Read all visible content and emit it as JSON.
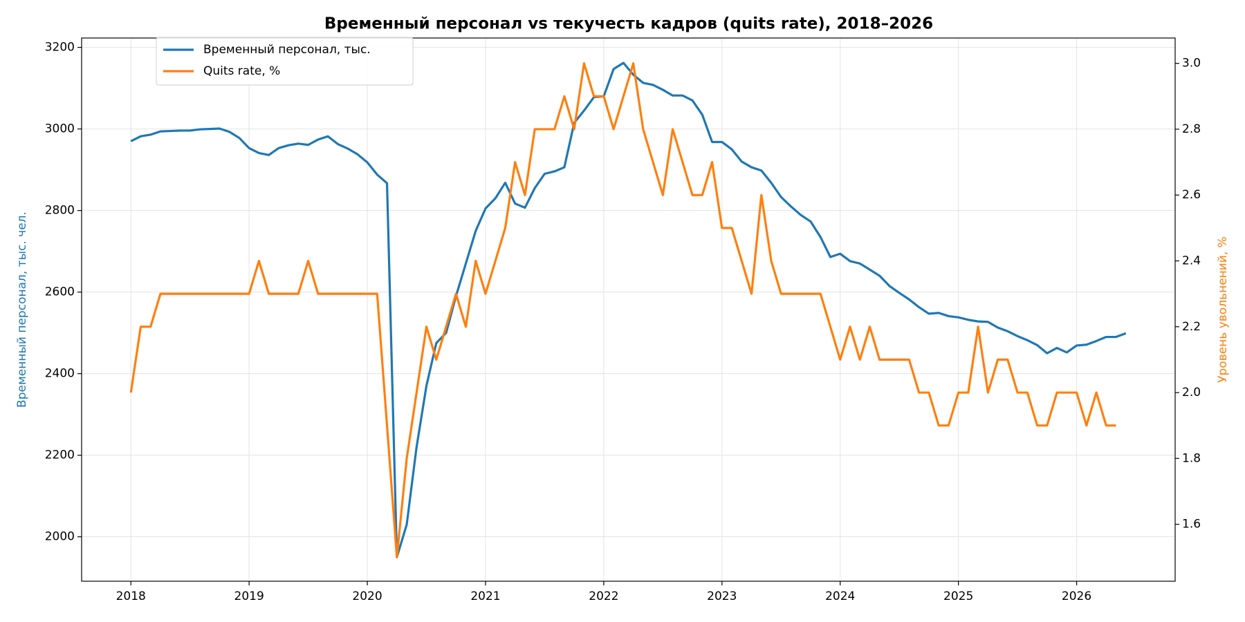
{
  "chart_data": {
    "type": "line",
    "title": "Временный персонал vs текучесть кадров (quits rate), 2018–2026",
    "ylabel": "Временный персонал, тыс. чел.",
    "y2label": "Уровень увольнений, %",
    "x": [
      "2018-01",
      "2018-02",
      "2018-03",
      "2018-04",
      "2018-05",
      "2018-06",
      "2018-07",
      "2018-08",
      "2018-09",
      "2018-10",
      "2018-11",
      "2018-12",
      "2019-01",
      "2019-02",
      "2019-03",
      "2019-04",
      "2019-05",
      "2019-06",
      "2019-07",
      "2019-08",
      "2019-09",
      "2019-10",
      "2019-11",
      "2019-12",
      "2020-01",
      "2020-02",
      "2020-03",
      "2020-04",
      "2020-05",
      "2020-06",
      "2020-07",
      "2020-08",
      "2020-09",
      "2020-10",
      "2020-11",
      "2020-12",
      "2021-01",
      "2021-02",
      "2021-03",
      "2021-04",
      "2021-05",
      "2021-06",
      "2021-07",
      "2021-08",
      "2021-09",
      "2021-10",
      "2021-11",
      "2021-12",
      "2022-01",
      "2022-02",
      "2022-03",
      "2022-04",
      "2022-05",
      "2022-06",
      "2022-07",
      "2022-08",
      "2022-09",
      "2022-10",
      "2022-11",
      "2022-12",
      "2023-01",
      "2023-02",
      "2023-03",
      "2023-04",
      "2023-05",
      "2023-06",
      "2023-07",
      "2023-08",
      "2023-09",
      "2023-10",
      "2023-11",
      "2023-12",
      "2024-01",
      "2024-02",
      "2024-03",
      "2024-04",
      "2024-05",
      "2024-06",
      "2024-07",
      "2024-08",
      "2024-09",
      "2024-10",
      "2024-11",
      "2024-12",
      "2025-01",
      "2025-02",
      "2025-03",
      "2025-04",
      "2025-05",
      "2025-06",
      "2025-07",
      "2025-08",
      "2025-09",
      "2025-10",
      "2025-11",
      "2025-12",
      "2026-01",
      "2026-02",
      "2026-03",
      "2026-04",
      "2026-05",
      "2026-06"
    ],
    "series": [
      {
        "name": "Временный персонал, тыс.",
        "color": "#1f77b4",
        "axis": "y",
        "values": [
          2970,
          2982,
          2986,
          2994,
          2995,
          2996,
          2996,
          2999,
          3000,
          3001,
          2993,
          2978,
          2953,
          2941,
          2936,
          2953,
          2960,
          2964,
          2961,
          2974,
          2982,
          2963,
          2952,
          2938,
          2918,
          2888,
          2867,
          1950,
          2030,
          2220,
          2370,
          2475,
          2500,
          2590,
          2670,
          2750,
          2805,
          2830,
          2868,
          2817,
          2807,
          2855,
          2890,
          2896,
          2906,
          3015,
          3045,
          3078,
          3080,
          3147,
          3162,
          3133,
          3113,
          3108,
          3096,
          3082,
          3082,
          3070,
          3035,
          2968,
          2968,
          2950,
          2920,
          2906,
          2898,
          2868,
          2833,
          2810,
          2789,
          2773,
          2735,
          2686,
          2694,
          2676,
          2670,
          2655,
          2640,
          2615,
          2598,
          2582,
          2563,
          2547,
          2549,
          2541,
          2538,
          2532,
          2528,
          2527,
          2513,
          2504,
          2492,
          2482,
          2470,
          2450,
          2463,
          2452,
          2469,
          2471,
          2480,
          2490,
          2490,
          2499
        ]
      },
      {
        "name": "Quits rate, %",
        "color": "#ff7f0e",
        "axis": "y2",
        "values": [
          2.0,
          2.2,
          2.2,
          2.3,
          2.3,
          2.3,
          2.3,
          2.3,
          2.3,
          2.3,
          2.3,
          2.3,
          2.3,
          2.4,
          2.3,
          2.3,
          2.3,
          2.3,
          2.4,
          2.3,
          2.3,
          2.3,
          2.3,
          2.3,
          2.3,
          2.3,
          1.9,
          1.5,
          1.8,
          2.0,
          2.2,
          2.1,
          2.2,
          2.3,
          2.2,
          2.4,
          2.3,
          2.4,
          2.5,
          2.7,
          2.6,
          2.8,
          2.8,
          2.8,
          2.9,
          2.8,
          3.0,
          2.9,
          2.9,
          2.8,
          2.9,
          3.0,
          2.8,
          2.7,
          2.6,
          2.8,
          2.7,
          2.6,
          2.6,
          2.7,
          2.5,
          2.5,
          2.4,
          2.3,
          2.6,
          2.4,
          2.3,
          2.3,
          2.3,
          2.3,
          2.3,
          2.2,
          2.1,
          2.2,
          2.1,
          2.2,
          2.1,
          2.1,
          2.1,
          2.1,
          2.0,
          2.0,
          1.9,
          1.9,
          2.0,
          2.0,
          2.2,
          2.0,
          2.1,
          2.1,
          2.0,
          2.0,
          1.9,
          1.9,
          2.0,
          2.0,
          2.0,
          1.9,
          2.0,
          1.9,
          1.9,
          null
        ]
      }
    ],
    "xlim": [
      "2017-08",
      "2026-11"
    ],
    "xticks": [
      "2018",
      "2019",
      "2020",
      "2021",
      "2022",
      "2023",
      "2024",
      "2025",
      "2026"
    ],
    "ylim": [
      1891,
      3223
    ],
    "yticks": [
      2000,
      2200,
      2400,
      2600,
      2800,
      3000,
      3200
    ],
    "y2lim": [
      1.427,
      3.077
    ],
    "y2ticks": [
      1.6,
      1.8,
      {
        "value": 2,
        "label": "2.0"
      },
      2.2,
      2.4,
      2.6,
      2.8,
      {
        "value": 3,
        "label": "3.0"
      }
    ],
    "grid": true,
    "legend": "upper left"
  }
}
